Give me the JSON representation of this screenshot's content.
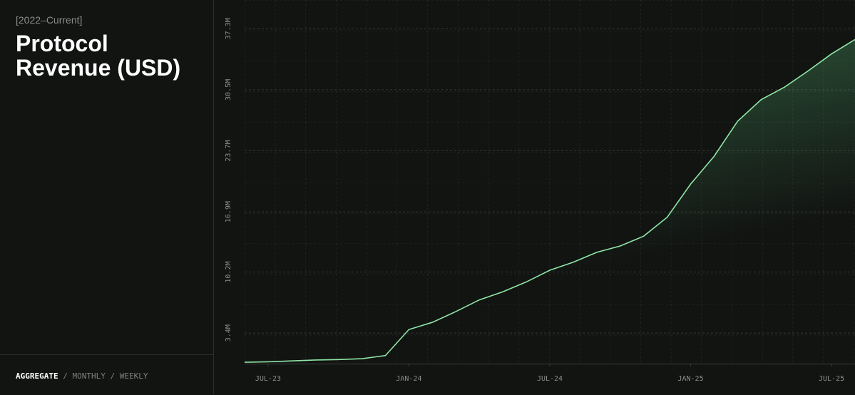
{
  "header": {
    "period": "[2022–Current]",
    "title": "Protocol Revenue (USD)"
  },
  "views": {
    "items": [
      "AGGREGATE",
      "MONTHLY",
      "WEEKLY"
    ],
    "separator": "/"
  },
  "chart_data": {
    "type": "line",
    "color": "#8fe6a6",
    "x": [
      "2023-06",
      "2023-07",
      "2023-08",
      "2023-09",
      "2023-10",
      "2023-11",
      "2023-12",
      "2024-01",
      "2024-02",
      "2024-03",
      "2024-04",
      "2024-05",
      "2024-06",
      "2024-07",
      "2024-08",
      "2024-09",
      "2024-10",
      "2024-11",
      "2024-12",
      "2025-01",
      "2025-02",
      "2025-03",
      "2025-04",
      "2025-05",
      "2025-06",
      "2025-07",
      "2025-08"
    ],
    "values": [
      0.15,
      0.2,
      0.3,
      0.4,
      0.45,
      0.55,
      0.9,
      3.8,
      4.6,
      5.8,
      7.1,
      8.0,
      9.1,
      10.4,
      11.3,
      12.4,
      13.1,
      14.2,
      16.3,
      20.0,
      23.1,
      27.0,
      29.4,
      30.8,
      32.6,
      34.5,
      36.1
    ],
    "xlim": [
      "2023-06",
      "2025-08"
    ],
    "xticks": [
      {
        "value": "2023-07",
        "label": "JUL-23"
      },
      {
        "value": "2024-01",
        "label": "JAN-24"
      },
      {
        "value": "2024-07",
        "label": "JUL-24"
      },
      {
        "value": "2025-01",
        "label": "JAN-25"
      },
      {
        "value": "2025-07",
        "label": "JUL-25"
      }
    ],
    "ylim": [
      0,
      40.5
    ],
    "yticks": [
      {
        "value": 3.4,
        "label": "3.4M"
      },
      {
        "value": 10.2,
        "label": "10.2M"
      },
      {
        "value": 16.9,
        "label": "16.9M"
      },
      {
        "value": 23.7,
        "label": "23.7M"
      },
      {
        "value": 30.5,
        "label": "30.5M"
      },
      {
        "value": 37.3,
        "label": "37.3M"
      }
    ],
    "grid": true
  }
}
